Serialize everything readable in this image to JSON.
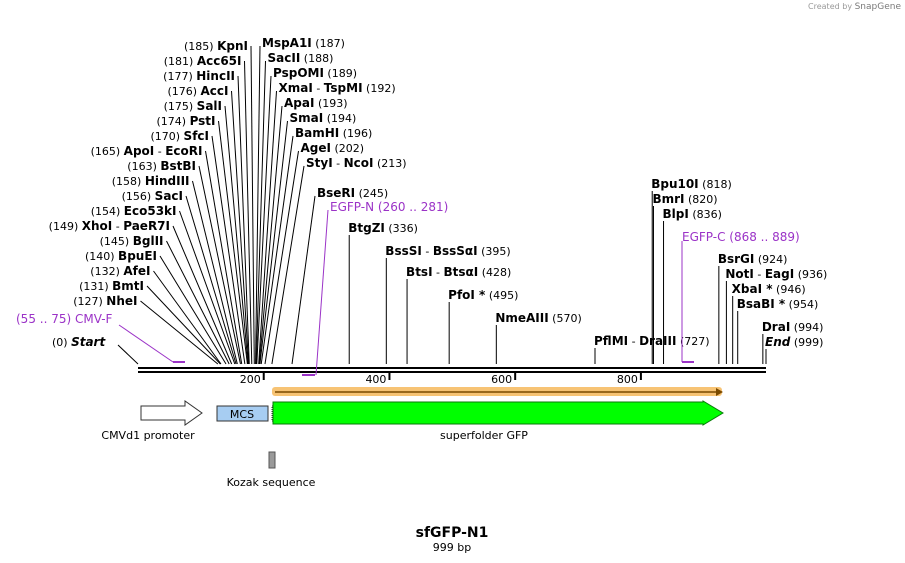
{
  "branding": {
    "created_by": "Created by",
    "app": "SnapGene"
  },
  "map": {
    "title": "sfGFP-N1",
    "subtitle": "999 bp",
    "length": 999,
    "ruler_ticks": [
      {
        "pos": 200,
        "label": "200"
      },
      {
        "pos": 400,
        "label": "400"
      },
      {
        "pos": 600,
        "label": "600"
      },
      {
        "pos": 800,
        "label": "800"
      }
    ]
  },
  "enzymes_left": [
    {
      "pos": 185,
      "left_num": "(185)",
      "name": "KpnI",
      "right_name": "MspA1I",
      "right_num": "(187)"
    },
    {
      "pos": 181,
      "left_num": "(181)",
      "name": "Acc65I",
      "right_name": "SacII",
      "right_num": "(188)"
    },
    {
      "pos": 177,
      "left_num": "(177)",
      "name": "HincII",
      "right_name": "PspOMI",
      "right_num": "(189)"
    },
    {
      "pos": 176,
      "left_num": "(176)",
      "name": "AccI",
      "right_name": "XmaI",
      "sep": "-",
      "right_name2": "TspMI",
      "right_num": "(192)"
    },
    {
      "pos": 175,
      "left_num": "(175)",
      "name": "SalI",
      "right_name": "ApaI",
      "right_num": "(193)"
    },
    {
      "pos": 174,
      "left_num": "(174)",
      "name": "PstI",
      "right_name": "SmaI",
      "right_num": "(194)"
    },
    {
      "pos": 170,
      "left_num": "(170)",
      "name": "SfcI",
      "right_name": "BamHI",
      "right_num": "(196)"
    },
    {
      "pos": 165,
      "left_num": "(165)",
      "name": "ApoI",
      "sep": "-",
      "name2": "EcoRI",
      "right_name": "AgeI",
      "right_num": "(202)"
    },
    {
      "pos": 163,
      "left_num": "(163)",
      "name": "BstBI",
      "right_name": "StyI",
      "sep_r": "-",
      "right_name2": "NcoI",
      "right_num": "(213)"
    },
    {
      "pos": 158,
      "left_num": "(158)",
      "name": "HindIII"
    },
    {
      "pos": 156,
      "left_num": "(156)",
      "name": "SacI",
      "right_name": "BseRI",
      "right_num": "(245)"
    },
    {
      "pos": 154,
      "left_num": "(154)",
      "name": "Eco53kI"
    },
    {
      "pos": 149,
      "left_num": "(149)",
      "name": "XhoI",
      "sep": "-",
      "name2": "PaeR7I"
    },
    {
      "pos": 145,
      "left_num": "(145)",
      "name": "BglII"
    },
    {
      "pos": 140,
      "left_num": "(140)",
      "name": "BpuEI"
    },
    {
      "pos": 132,
      "left_num": "(132)",
      "name": "AfeI"
    },
    {
      "pos": 131,
      "left_num": "(131)",
      "name": "BmtI"
    },
    {
      "pos": 127,
      "left_num": "(127)",
      "name": "NheI"
    }
  ],
  "enzymes_mid": [
    {
      "pos": 336,
      "name": "BtgZI",
      "num": "(336)"
    },
    {
      "pos": 395,
      "name": "BssSI",
      "sep": "-",
      "name2": "BssSαI",
      "num": "(395)"
    },
    {
      "pos": 428,
      "name": "BtsI",
      "sep": "-",
      "name2": "BtsαI",
      "num": "(428)"
    },
    {
      "pos": 495,
      "name": "PfoI *",
      "num": "(495)"
    },
    {
      "pos": 570,
      "name": "NmeAIII",
      "num": "(570)"
    },
    {
      "pos": 727,
      "name": "PflMI",
      "sep": "-",
      "name2": "DraIII",
      "num": "(727)"
    }
  ],
  "enzymes_right": [
    {
      "pos": 818,
      "name": "Bpu10I",
      "num": "(818)"
    },
    {
      "pos": 820,
      "name": "BmrI",
      "num": "(820)"
    },
    {
      "pos": 836,
      "name": "BlpI",
      "num": "(836)"
    },
    {
      "pos": 924,
      "name": "BsrGI",
      "num": "(924)"
    },
    {
      "pos": 936,
      "name": "NotI",
      "sep": "-",
      "name2": "EagI",
      "num": "(936)"
    },
    {
      "pos": 946,
      "name": "XbaI *",
      "num": "(946)"
    },
    {
      "pos": 954,
      "name": "BsaBI *",
      "num": "(954)"
    },
    {
      "pos": 994,
      "name": "DraI",
      "num": "(994)"
    },
    {
      "pos": 999,
      "name": "End",
      "num": "(999)"
    }
  ],
  "start": {
    "name": "Start",
    "num": "(0)"
  },
  "primers": [
    {
      "name": "CMV-F",
      "range": "(55 .. 75)"
    },
    {
      "name": "EGFP-N",
      "range": "(260 .. 281)"
    },
    {
      "name": "EGFP-C",
      "range": "(868 .. 889)"
    }
  ],
  "features": {
    "promoter": "CMVd1 promoter",
    "mcs": "MCS",
    "gfp": "superfolder GFP",
    "kozak": "Kozak sequence"
  },
  "colors": {
    "primer": "#9b33c7",
    "gfp_fill": "#00ff00",
    "gfp_stroke": "#0a7a0a",
    "mcs_fill": "#a7cdf2",
    "orf": "#f6b85c",
    "kozak": "#9a9a9a"
  }
}
